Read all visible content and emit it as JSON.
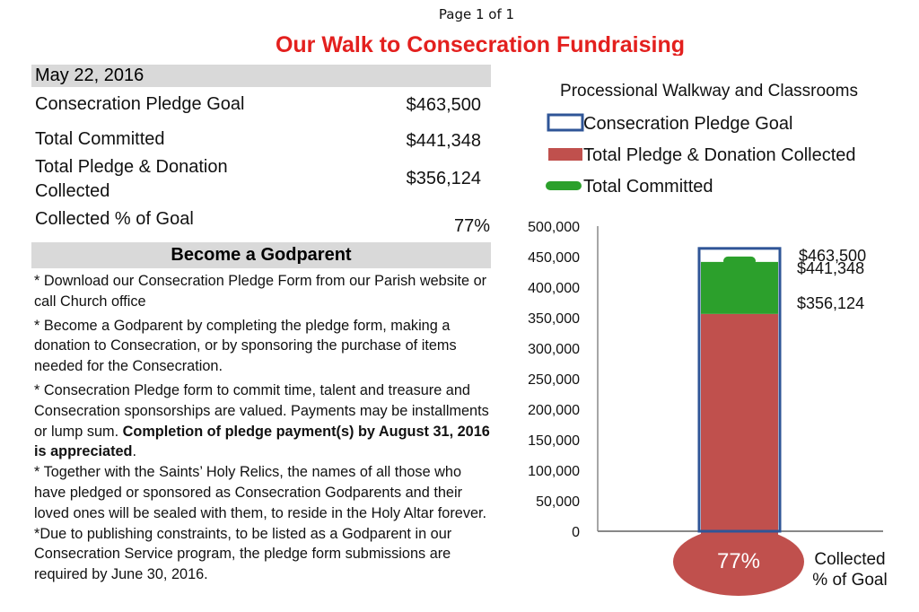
{
  "page_label": "Page 1 of 1",
  "title": "Our Walk to Consecration Fundraising",
  "date": "May 22, 2016",
  "stats": [
    {
      "label": "Consecration Pledge Goal",
      "value": "$463,500"
    },
    {
      "label": "Total Committed",
      "value": "$441,348"
    },
    {
      "label": "Total Pledge & Donation Collected",
      "value": "$356,124"
    },
    {
      "label": "Collected % of Goal",
      "value": "77%"
    }
  ],
  "section_title": "Become a Godparent",
  "notes": {
    "n1": "* Download our Consecration Pledge Form from our Parish website or call Church office",
    "n2": "* Become a Godparent by completing the pledge form, making a donation to Consecration, or by sponsoring the purchase of items needed for the Consecration.",
    "n3_plain": "* Consecration Pledge form to commit time, talent and treasure and Consecration sponsorships are valued. Payments may be installments or lump sum. ",
    "n3_bold": "Completion of pledge payment(s) by August 31, 2016 is appreciated",
    "n3_end": ".",
    "n4": "*  Together with the Saints’ Holy Relics, the names of all those who have pledged or sponsored as Consecration Godparents and their loved ones will be sealed with them, to reside in the Holy Altar forever.",
    "n5": "*Due to publishing constraints, to be listed as a Godparent in our Consecration Service program, the pledge form submissions are required by June 30, 2016."
  },
  "colors": {
    "goal_outline": "#2f5597",
    "collected": "#c0504d",
    "committed": "#2ca02c",
    "bulb": "#c0504d",
    "title": "#e3201e"
  },
  "chart_data": {
    "type": "bar",
    "title": "Processional Walkway and Classrooms",
    "legend": [
      {
        "name": "Consecration Pledge Goal",
        "style": "outline",
        "color": "#2f5597"
      },
      {
        "name": "Total Pledge & Donation Collected",
        "style": "fill",
        "color": "#c0504d"
      },
      {
        "name": "Total Committed",
        "style": "line",
        "color": "#2ca02c"
      }
    ],
    "series": [
      {
        "name": "Consecration Pledge Goal",
        "value": 463500,
        "label": "$463,500"
      },
      {
        "name": "Total Committed",
        "value": 441348,
        "label": "$441,348"
      },
      {
        "name": "Total Pledge & Donation Collected",
        "value": 356124,
        "label": "$356,124"
      }
    ],
    "ylim": [
      0,
      500000
    ],
    "yticks": [
      "500,000",
      "450,000",
      "400,000",
      "350,000",
      "300,000",
      "250,000",
      "200,000",
      "150,000",
      "100,000",
      "50,000",
      "0"
    ],
    "ytick_values": [
      500000,
      450000,
      400000,
      350000,
      300000,
      250000,
      200000,
      150000,
      100000,
      50000,
      0
    ],
    "bulb_label": "77%",
    "bulb_caption": [
      "Collected",
      "% of Goal"
    ],
    "grid": false
  }
}
